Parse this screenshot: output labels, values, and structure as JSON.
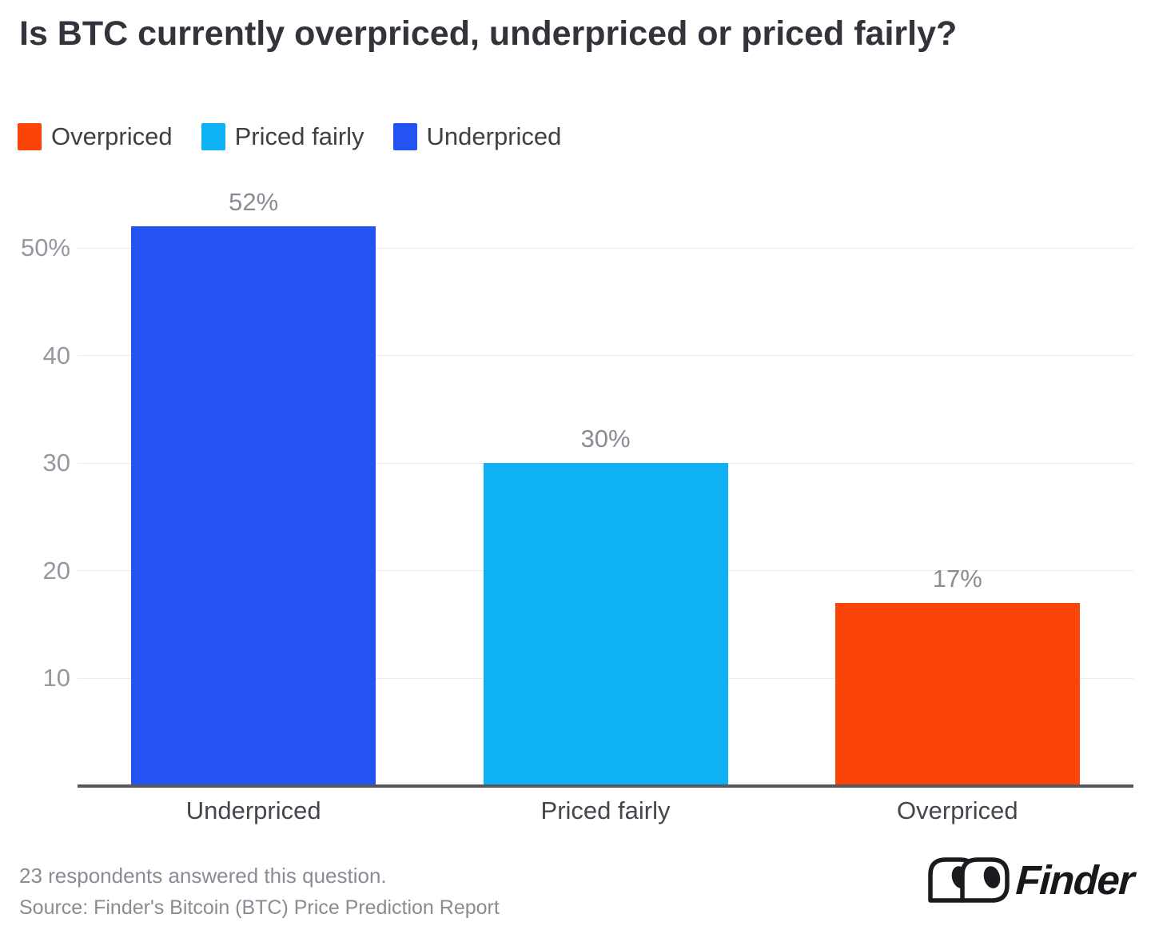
{
  "title": "Is BTC currently overpriced, underpriced or priced fairly?",
  "legend": {
    "items": [
      {
        "label": "Overpriced",
        "color": "#FB4508"
      },
      {
        "label": "Priced fairly",
        "color": "#0FB1F5"
      },
      {
        "label": "Underpriced",
        "color": "#2353F0"
      }
    ]
  },
  "chart_data": {
    "type": "bar",
    "title": "Is BTC currently overpriced, underpriced or priced fairly?",
    "categories": [
      "Underpriced",
      "Priced fairly",
      "Overpriced"
    ],
    "values": [
      52,
      30,
      17
    ],
    "value_labels": [
      "52%",
      "30%",
      "17%"
    ],
    "bar_colors": [
      "#2353F0",
      "#0FB1F5",
      "#FB4508"
    ],
    "unit": "%",
    "xlabel": "",
    "ylabel": "",
    "ylim": [
      0,
      52
    ],
    "yticks": [
      {
        "value": 10,
        "label": "10"
      },
      {
        "value": 20,
        "label": "20"
      },
      {
        "value": 30,
        "label": "30"
      },
      {
        "value": 40,
        "label": "40"
      },
      {
        "value": 50,
        "label": "50%"
      }
    ],
    "grid": true,
    "legend_position": "top-left"
  },
  "footer": {
    "respondents_note": "23 respondents answered this question.",
    "source": "Source: Finder's Bitcoin (BTC) Price Prediction Report",
    "brand": "Finder"
  },
  "colors": {
    "underpriced": "#2353F0",
    "priced_fairly": "#0FB1F5",
    "overpriced": "#FB4508",
    "title_text": "#33343B",
    "axis_line": "#58585C",
    "gridline": "#ECECEE",
    "muted_text": "#8E8F97",
    "category_text": "#45464C",
    "logo": "#1A1B1E"
  }
}
